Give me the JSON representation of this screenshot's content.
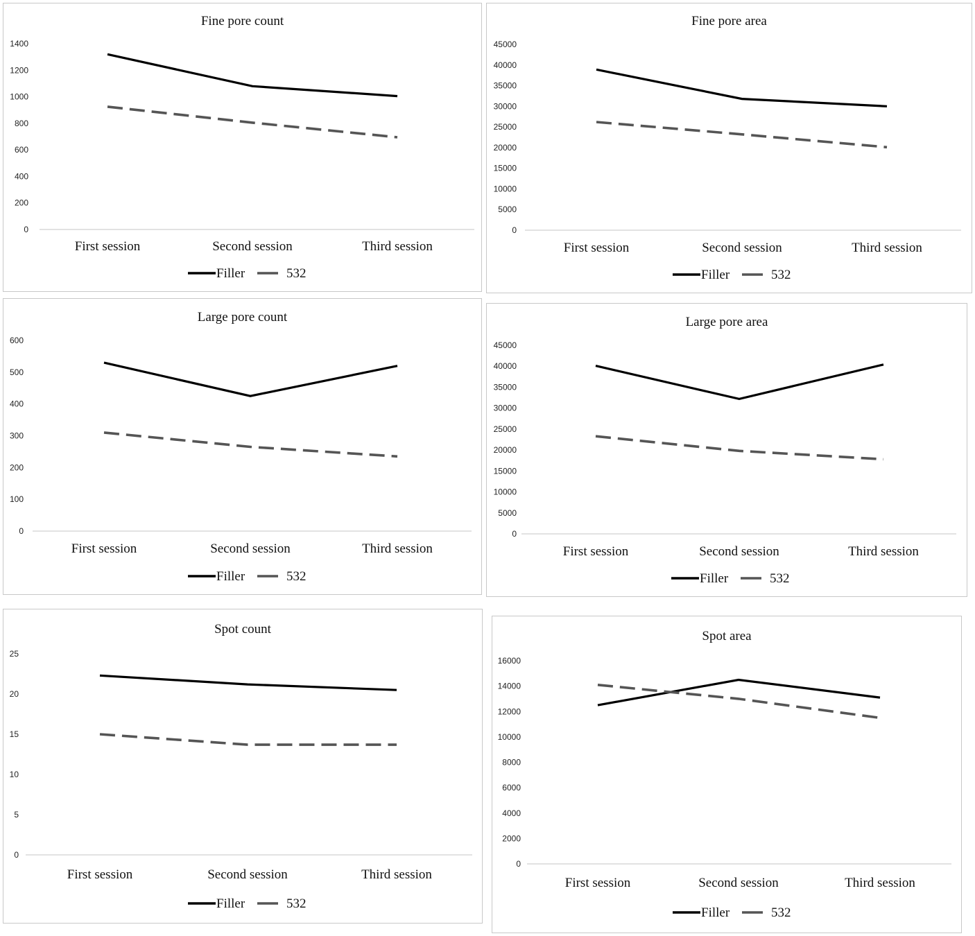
{
  "legend": {
    "filler": "Filler",
    "laser": "532"
  },
  "colors": {
    "filler": "#000000",
    "laser": "#555555",
    "axis": "#d0d0d0"
  },
  "chart_data": [
    {
      "type": "line",
      "title": "Fine pore count",
      "categories": [
        "First session",
        "Second session",
        "Third session"
      ],
      "ylim": [
        0,
        1400
      ],
      "yticks": [
        0,
        200,
        400,
        600,
        800,
        1000,
        1200,
        1400
      ],
      "series": [
        {
          "name": "Filler",
          "values": [
            1320,
            1080,
            1005
          ]
        },
        {
          "name": "532",
          "values": [
            925,
            805,
            695
          ]
        }
      ],
      "legend_position": "bottom"
    },
    {
      "type": "line",
      "title": "Fine pore area",
      "categories": [
        "First session",
        "Second session",
        "Third session"
      ],
      "ylim": [
        0,
        45000
      ],
      "yticks": [
        0,
        5000,
        10000,
        15000,
        20000,
        25000,
        30000,
        35000,
        40000,
        45000
      ],
      "series": [
        {
          "name": "Filler",
          "values": [
            38900,
            31800,
            30000
          ]
        },
        {
          "name": "532",
          "values": [
            26200,
            23200,
            20100
          ]
        }
      ],
      "legend_position": "bottom"
    },
    {
      "type": "line",
      "title": "Large pore count",
      "categories": [
        "First session",
        "Second session",
        "Third session"
      ],
      "ylim": [
        0,
        600
      ],
      "yticks": [
        0,
        100,
        200,
        300,
        400,
        500,
        600
      ],
      "series": [
        {
          "name": "Filler",
          "values": [
            530,
            425,
            520
          ]
        },
        {
          "name": "532",
          "values": [
            310,
            265,
            235
          ]
        }
      ],
      "legend_position": "bottom"
    },
    {
      "type": "line",
      "title": "Large pore area",
      "categories": [
        "First session",
        "Second session",
        "Third session"
      ],
      "ylim": [
        0,
        45000
      ],
      "yticks": [
        0,
        5000,
        10000,
        15000,
        20000,
        25000,
        30000,
        35000,
        40000,
        45000
      ],
      "series": [
        {
          "name": "Filler",
          "values": [
            40100,
            32200,
            40400
          ]
        },
        {
          "name": "532",
          "values": [
            23300,
            19800,
            17800
          ]
        }
      ],
      "legend_position": "bottom"
    },
    {
      "type": "line",
      "title": "Spot count",
      "categories": [
        "First session",
        "Second session",
        "Third session"
      ],
      "ylim": [
        0,
        25
      ],
      "yticks": [
        0,
        5,
        10,
        15,
        20,
        25
      ],
      "series": [
        {
          "name": "Filler",
          "values": [
            22.3,
            21.2,
            20.5
          ]
        },
        {
          "name": "532",
          "values": [
            15.0,
            13.7,
            13.7
          ]
        }
      ],
      "legend_position": "bottom"
    },
    {
      "type": "line",
      "title": "Spot area",
      "categories": [
        "First session",
        "Second session",
        "Third session"
      ],
      "ylim": [
        0,
        16000
      ],
      "yticks": [
        0,
        2000,
        4000,
        6000,
        8000,
        10000,
        12000,
        14000,
        16000
      ],
      "series": [
        {
          "name": "Filler",
          "values": [
            12500,
            14500,
            13100
          ]
        },
        {
          "name": "532",
          "values": [
            14100,
            13000,
            11500
          ]
        }
      ],
      "legend_position": "bottom"
    }
  ]
}
